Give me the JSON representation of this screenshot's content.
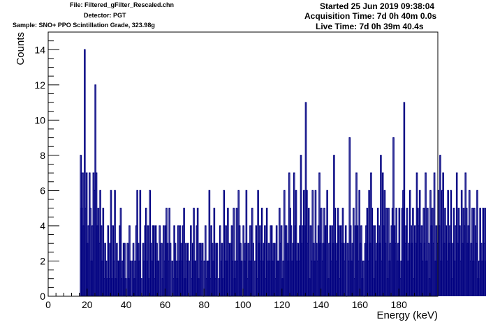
{
  "header": {
    "file": "File: Filtered_gFilter_Rescaled.chn",
    "detector": "Detector: PGT",
    "sample": "Sample: SNO+ PPO Scintillation Grade, 323.98g",
    "started": "Started 25 Jun 2019 09:38:04",
    "acquisition_time": "Acquisition Time: 7d 0h 40m 0.0s",
    "live_time": "Live Time: 7d 0h 39m 40.4s"
  },
  "chart_data": {
    "type": "histogram",
    "xlabel": "Energy (keV)",
    "ylabel": "Counts",
    "xlim": [
      0,
      200
    ],
    "ylim": [
      0,
      15
    ],
    "x_ticks": [
      0,
      20,
      40,
      60,
      80,
      100,
      120,
      140,
      160,
      180
    ],
    "y_ticks": [
      0,
      2,
      4,
      6,
      8,
      10,
      12,
      14
    ],
    "bin_width": 0.5,
    "x_start": 16.5,
    "line_color": "#000080",
    "counts": [
      8,
      5,
      7,
      4,
      14,
      5,
      7,
      3,
      4,
      7,
      5,
      2,
      4,
      7,
      6,
      12,
      7,
      4,
      5,
      3,
      6,
      4,
      2,
      5,
      1,
      3,
      2,
      1,
      4,
      1,
      3,
      6,
      1,
      4,
      2,
      6,
      1,
      3,
      2,
      2,
      4,
      5,
      1,
      2,
      3,
      3,
      1,
      0,
      3,
      1,
      4,
      2,
      0,
      2,
      3,
      1,
      2,
      4,
      6,
      3,
      2,
      6,
      1,
      0,
      3,
      2,
      4,
      5,
      2,
      4,
      1,
      6,
      3,
      2,
      4,
      4,
      1,
      4,
      3,
      2,
      2,
      4,
      0,
      3,
      1,
      4,
      2,
      4,
      5,
      3,
      2,
      5,
      3,
      0,
      2,
      1,
      4,
      3,
      2,
      1,
      4,
      2,
      4,
      3,
      2,
      4,
      5,
      1,
      3,
      2,
      3,
      2,
      0,
      4,
      1,
      3,
      5,
      2,
      2,
      4,
      5,
      1,
      3,
      3,
      2,
      3,
      0,
      2,
      4,
      1,
      2,
      2,
      6,
      1,
      4,
      3,
      2,
      5,
      1,
      3,
      3,
      0,
      1,
      4,
      2,
      3,
      1,
      6,
      2,
      4,
      2,
      5,
      3,
      0,
      3,
      4,
      2,
      5,
      1,
      2,
      5,
      2,
      6,
      4,
      3,
      2,
      0,
      4,
      2,
      3,
      6,
      1,
      3,
      2,
      4,
      2,
      5,
      3,
      0,
      2,
      4,
      1,
      6,
      3,
      4,
      2,
      5,
      2,
      3,
      4,
      1,
      5,
      2,
      3,
      2,
      4,
      4,
      2,
      3,
      3,
      1,
      4,
      2,
      2,
      5,
      3,
      4,
      1,
      2,
      6,
      4,
      4,
      3,
      2,
      7,
      5,
      4,
      2,
      3,
      7,
      4,
      6,
      2,
      3,
      2,
      4,
      8,
      3,
      4,
      6,
      4,
      11,
      6,
      3,
      5,
      1,
      4,
      2,
      6,
      3,
      2,
      6,
      3,
      2,
      4,
      7,
      3,
      5,
      2,
      3,
      5,
      4,
      4,
      6,
      1,
      3,
      4,
      2,
      4,
      3,
      8,
      5,
      2,
      3,
      5,
      4,
      1,
      4,
      3,
      5,
      3,
      2,
      4,
      0,
      3,
      2,
      9,
      4,
      2,
      3,
      5,
      1,
      4,
      7,
      4,
      2,
      6,
      3,
      4,
      1,
      2,
      0,
      3,
      4,
      5,
      2,
      6,
      3,
      7,
      5,
      4,
      1,
      4,
      2,
      3,
      5,
      4,
      3,
      8,
      2,
      7,
      4,
      6,
      3,
      5,
      1,
      5,
      2,
      3,
      4,
      5,
      9,
      4,
      3,
      5,
      2,
      3,
      5,
      1,
      2,
      5,
      6,
      11,
      3,
      4,
      5,
      2,
      3,
      6,
      4,
      3,
      5,
      1,
      4,
      3,
      7,
      5,
      4,
      6,
      3,
      4,
      2,
      5,
      3,
      7,
      2,
      5,
      3,
      1,
      6,
      4,
      5,
      3,
      7,
      2,
      4,
      3,
      6,
      4,
      8,
      2,
      6,
      7,
      3,
      5,
      4,
      2,
      6,
      3,
      4,
      6,
      1,
      3,
      5,
      2,
      4,
      7,
      3,
      5,
      4,
      2,
      6,
      3,
      5,
      4,
      7,
      5,
      3,
      4,
      6,
      2,
      3,
      5,
      2,
      5,
      4,
      3,
      6,
      1,
      2,
      5,
      3,
      2,
      5,
      3,
      5,
      2
    ]
  }
}
